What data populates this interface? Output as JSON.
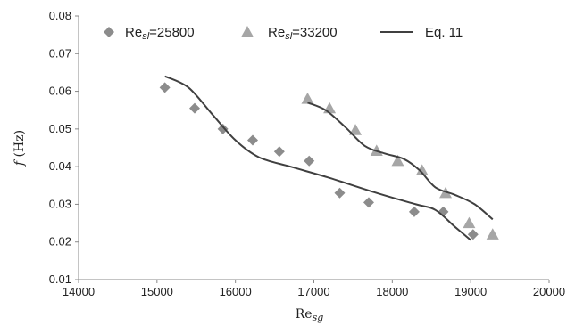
{
  "chart_data": {
    "type": "scatter",
    "xlabel": "Re",
    "xlabel_subscript": "sg",
    "ylabel": "f (Hz)",
    "xlim": [
      14000,
      20000
    ],
    "ylim": [
      0.01,
      0.08
    ],
    "xticks": [
      "14000",
      "15000",
      "16000",
      "17000",
      "18000",
      "19000",
      "20000"
    ],
    "yticks": [
      "0.01",
      "0.02",
      "0.03",
      "0.04",
      "0.05",
      "0.06",
      "0.07",
      "0.08"
    ],
    "grid": false,
    "legend_position": "top",
    "series": [
      {
        "name": "Re_sl=25800",
        "marker": "diamond",
        "color": "#8c8c8c",
        "points": [
          [
            15100,
            0.061
          ],
          [
            15480,
            0.0555
          ],
          [
            15840,
            0.05
          ],
          [
            16220,
            0.047
          ],
          [
            16560,
            0.044
          ],
          [
            16940,
            0.0415
          ],
          [
            17330,
            0.033
          ],
          [
            17700,
            0.0305
          ],
          [
            18280,
            0.028
          ],
          [
            18650,
            0.028
          ],
          [
            19030,
            0.022
          ]
        ]
      },
      {
        "name": "Re_sl=33200",
        "marker": "triangle",
        "color": "#a6a6a6",
        "points": [
          [
            16920,
            0.058
          ],
          [
            17200,
            0.0555
          ],
          [
            17530,
            0.0497
          ],
          [
            17800,
            0.0442
          ],
          [
            18070,
            0.0415
          ],
          [
            18380,
            0.039
          ],
          [
            18680,
            0.033
          ],
          [
            18980,
            0.025
          ],
          [
            19280,
            0.022
          ]
        ]
      },
      {
        "name": "Eq. 11",
        "type": "line",
        "color": "#404040",
        "curves": [
          [
            [
              15100,
              0.064
            ],
            [
              15400,
              0.061
            ],
            [
              15700,
              0.054
            ],
            [
              16000,
              0.047
            ],
            [
              16300,
              0.0425
            ],
            [
              16700,
              0.04
            ],
            [
              17200,
              0.037
            ],
            [
              17800,
              0.033
            ],
            [
              18300,
              0.03
            ],
            [
              18550,
              0.0285
            ],
            [
              18800,
              0.024
            ],
            [
              19000,
              0.0205
            ]
          ],
          [
            [
              16920,
              0.057
            ],
            [
              17150,
              0.055
            ],
            [
              17400,
              0.0505
            ],
            [
              17650,
              0.0455
            ],
            [
              17900,
              0.0435
            ],
            [
              18150,
              0.042
            ],
            [
              18350,
              0.039
            ],
            [
              18550,
              0.0345
            ],
            [
              18800,
              0.0325
            ],
            [
              19050,
              0.03
            ],
            [
              19280,
              0.026
            ]
          ]
        ]
      }
    ],
    "legend": [
      {
        "prefix": "Re",
        "sub": "sl",
        "suffix": "=25800"
      },
      {
        "prefix": "Re",
        "sub": "sl",
        "suffix": "=33200"
      },
      {
        "prefix": "Eq. 11",
        "sub": "",
        "suffix": ""
      }
    ]
  }
}
